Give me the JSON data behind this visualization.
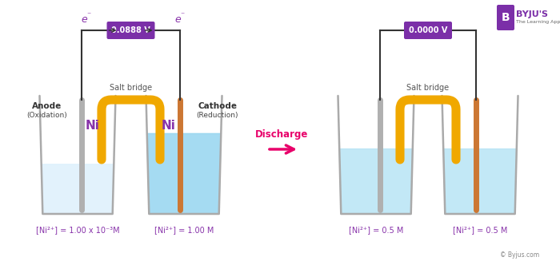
{
  "bg_color": "#ffffff",
  "voltage_left": "0.0888 V",
  "voltage_right": "0.0000 V",
  "discharge_text": "Discharge",
  "discharge_color": "#e8006a",
  "anode_label": "Anode",
  "anode_sub": "(Oxidation)",
  "cathode_label": "Cathode",
  "cathode_sub": "(Reduction)",
  "salt_bridge_label": "Salt bridge",
  "ni_color": "#8833aa",
  "ni_label": "Ni",
  "voltage_box_color": "#7b2fa8",
  "voltage_text_color": "#ffffff",
  "wire_color": "#333333",
  "arrow_color": "#333333",
  "electrode_gray": "#b0b0b0",
  "electrode_orange": "#cc7733",
  "salt_bridge_color": "#f0a800",
  "beaker_outline": "#aaaaaa",
  "beaker_fill": "#f0f8ff",
  "water_left1_color": "#ddf0fc",
  "water_right1_color": "#95d5f0",
  "water_both2_color": "#b8e4f5",
  "conc_left1": "[Ni²⁺] = 1.00 x 10⁻³M",
  "conc_right1": "[Ni²⁺] = 1.00 M",
  "conc_left2": "[Ni²⁺] = 0.5 M",
  "conc_right2": "[Ni²⁺] = 0.5 M",
  "conc_color": "#8833aa",
  "electron_color": "#8833aa",
  "byju_color": "#7b2fa8",
  "copyright_text": "© Byjus.com"
}
